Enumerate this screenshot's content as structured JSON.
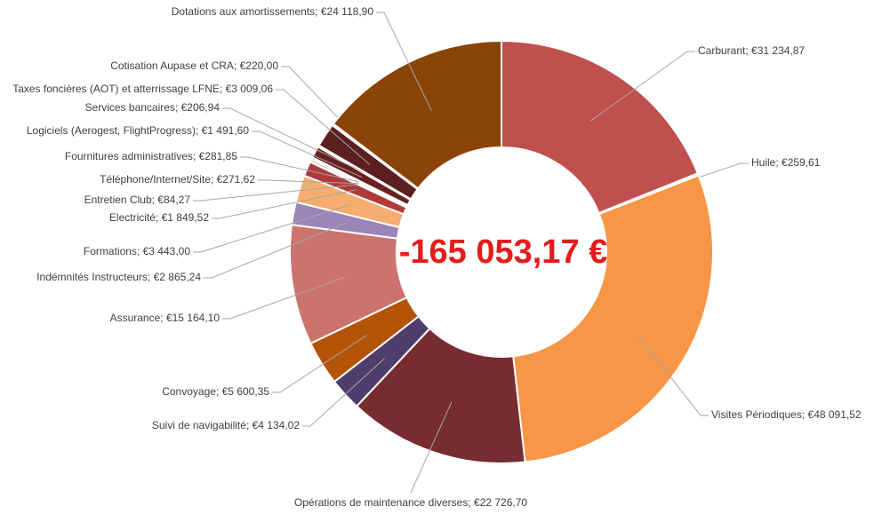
{
  "chart_data": {
    "type": "donut",
    "annotation": "-165 053,17 €",
    "label_separator": "; ",
    "categories": [
      "Carburant",
      "Huile",
      "Visites Périodiques",
      "Opérations de maintenance diverses",
      "Suivi de navigabilité",
      "Convoyage",
      "Assurance",
      "Indémnités Instructeurs",
      "Formations",
      "Electricité",
      "Entretien Club",
      "Téléphone/Internet/Site",
      "Fournitures administratives",
      "Logiciels (Aerogest, FlightProgress)",
      "Services bancaires",
      "Taxes foncières (AOT) et atterrissage LFNE",
      "Cotisation Aupase et CRA",
      "Dotations aux amortissements"
    ],
    "values": [
      31234.87,
      259.61,
      48091.52,
      22726.7,
      4134.02,
      5600.35,
      15164.1,
      2865.24,
      3443.0,
      1849.52,
      84.27,
      271.62,
      281.85,
      1491.6,
      206.94,
      3009.06,
      220.0,
      24118.9
    ],
    "value_labels": [
      "€31 234,87",
      "€259,61",
      "€48 091,52",
      "€22 726,70",
      "€4 134,02",
      "€5 600,35",
      "€15 164,10",
      "€2 865,24",
      "€3 443,00",
      "€1 849,52",
      "€84,27",
      "€271,62",
      "€281,85",
      "€1 491,60",
      "€206,94",
      "€3 009,06",
      "€220,00",
      "€24 118,90"
    ],
    "colors": [
      "#c0504d",
      "#e6b9b8",
      "#f79646",
      "#772c2f",
      "#4f3d6b",
      "#b45409",
      "#cd736e",
      "#9b84b8",
      "#f6ad6f",
      "#b03a3a",
      "#d98c6c",
      "#8a3a3a",
      "#b9a9cf",
      "#6b2020",
      "#c9b3d9",
      "#5c1f1f",
      "#a05a2c",
      "#8b4408"
    ]
  }
}
